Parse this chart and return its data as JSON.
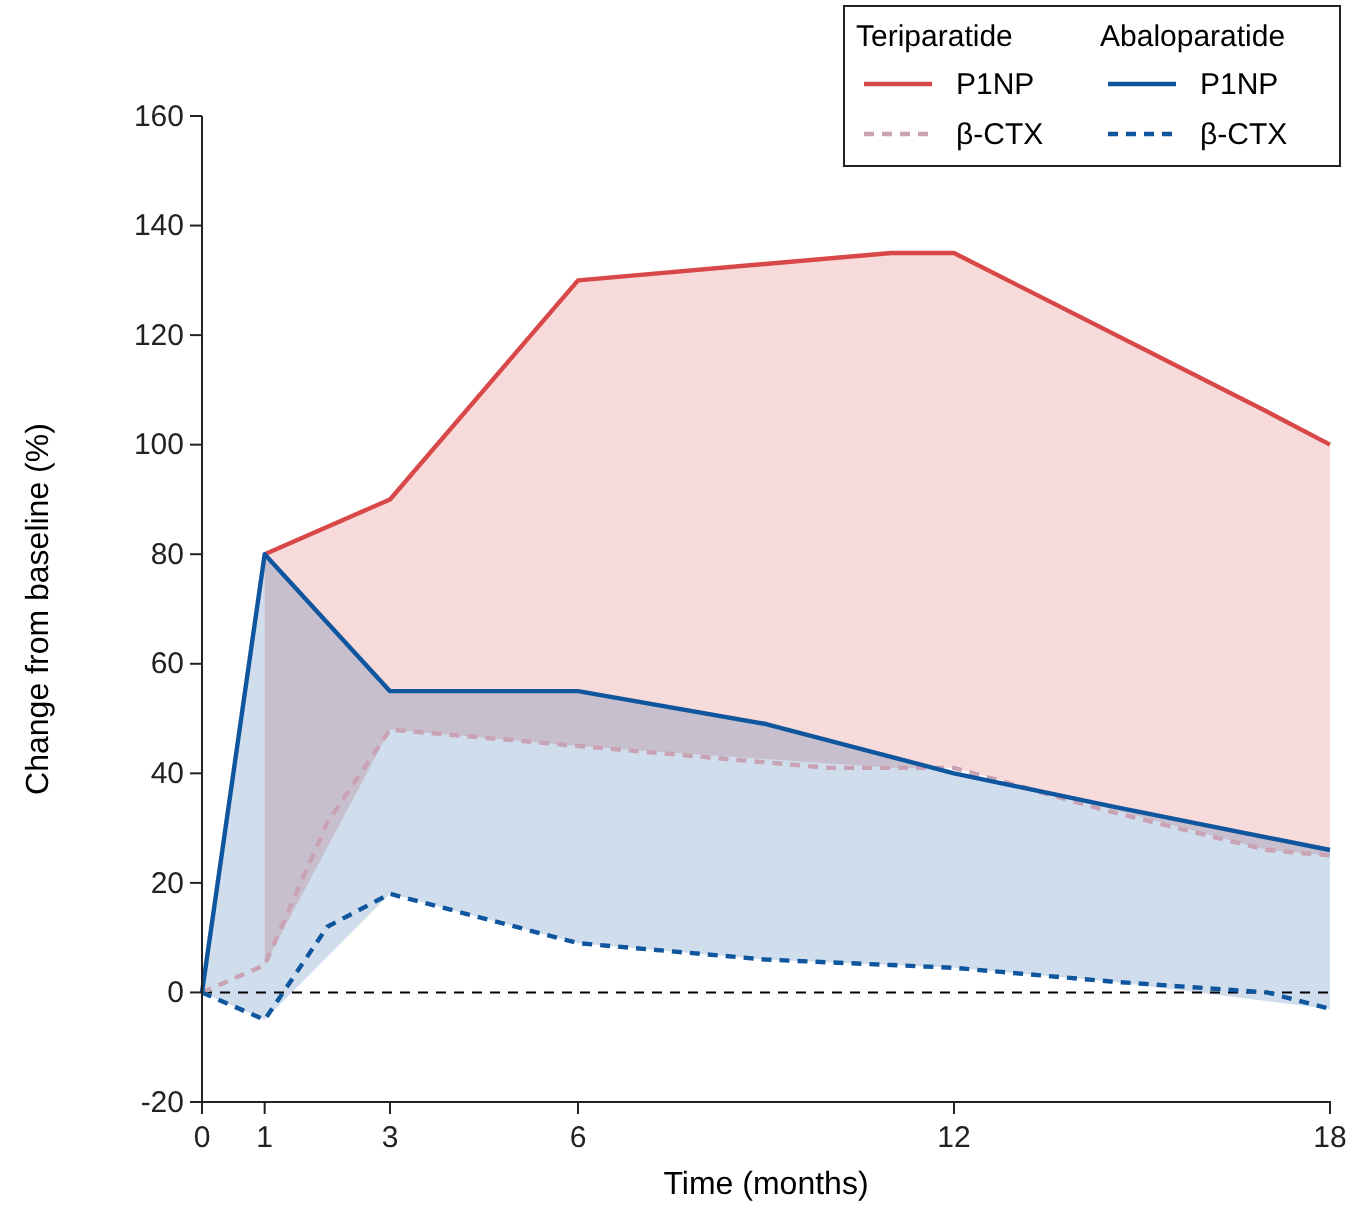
{
  "chart_data": {
    "type": "line",
    "xlabel": "Time (months)",
    "ylabel": "Change from baseline (%)",
    "xlim": [
      0,
      18
    ],
    "xticks": [
      0,
      1,
      3,
      6,
      12,
      18
    ],
    "ylim": [
      -20,
      160
    ],
    "yticks": [
      -20,
      0,
      20,
      40,
      60,
      80,
      100,
      120,
      140,
      160
    ],
    "grid": false,
    "legend": "top right",
    "marker": "none",
    "annotations": [
      "Teriparatide",
      "Abaloparatide"
    ],
    "ref_lines": [
      {
        "axis": "y",
        "value": 0,
        "color": "#000000",
        "line_style": "dashed"
      }
    ],
    "series": [
      {
        "name": "P1NP",
        "color": "#d94848",
        "line_style": "solid",
        "x": [
          1,
          3,
          6,
          11,
          12,
          17,
          18
        ],
        "values": [
          80,
          90,
          130,
          135,
          135,
          106,
          100
        ],
        "lower": [
          5,
          48,
          45,
          41,
          41,
          26,
          25
        ],
        "upper": [
          80,
          90,
          130,
          135,
          135,
          106,
          100
        ]
      },
      {
        "name": "β-CTX",
        "color": "#c9a3b3",
        "line_style": "dashed",
        "x": [
          0,
          1,
          2,
          3,
          6,
          9,
          10,
          12,
          14.5,
          17,
          18
        ],
        "values": [
          0,
          5,
          31,
          48,
          45,
          42,
          41,
          41,
          33,
          26,
          25
        ]
      },
      {
        "name": "P1NP",
        "color": "#0f569e",
        "line_style": "solid",
        "x": [
          0,
          1,
          3,
          6,
          9,
          12,
          14.5,
          18
        ],
        "values": [
          0,
          80,
          55,
          55,
          49,
          40,
          34,
          26
        ],
        "lower": [
          0,
          -5,
          18,
          9,
          6,
          4.5,
          2,
          -3
        ],
        "upper": [
          0,
          80,
          55,
          55,
          49,
          40,
          34,
          26
        ]
      },
      {
        "name": "β-CTX",
        "color": "#0f569e",
        "line_style": "dashed",
        "x": [
          0,
          1,
          2,
          3,
          6,
          9,
          11,
          12,
          14.5,
          17,
          18
        ],
        "values": [
          0,
          -5,
          12,
          18,
          9,
          6,
          5,
          4.5,
          2,
          0,
          -3
        ]
      }
    ]
  }
}
